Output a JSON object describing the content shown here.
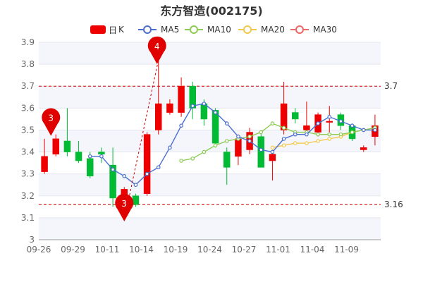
{
  "chart_data": {
    "type": "candlestick",
    "title": "东方智造(002175)",
    "legend": [
      "日",
      "K",
      "MA5",
      "MA10",
      "MA20",
      "MA30"
    ],
    "ylim": [
      3.0,
      3.9
    ],
    "yticks": [
      "3",
      "3.1",
      "3.2",
      "3.3",
      "3.4",
      "3.5",
      "3.6",
      "3.7",
      "3.8",
      "3.9"
    ],
    "xticks": [
      "09-26",
      "09-29",
      "10-11",
      "10-14",
      "10-19",
      "10-24",
      "10-27",
      "11-01",
      "11-04",
      "11-09"
    ],
    "colors": {
      "up": "#ee0000",
      "down": "#00bb33",
      "ma5": "#4a6fd0",
      "ma10": "#8ccc55",
      "ma20": "#f4c84c",
      "ma30": "#ee6666",
      "refline": "#cc0000"
    },
    "candles": [
      {
        "o": 3.31,
        "c": 3.38,
        "h": 3.46,
        "l": 3.3
      },
      {
        "o": 3.39,
        "c": 3.46,
        "h": 3.48,
        "l": 3.38
      },
      {
        "o": 3.45,
        "c": 3.4,
        "h": 3.6,
        "l": 3.38
      },
      {
        "o": 3.4,
        "c": 3.36,
        "h": 3.45,
        "l": 3.35
      },
      {
        "o": 3.37,
        "c": 3.29,
        "h": 3.4,
        "l": 3.28
      },
      {
        "o": 3.4,
        "c": 3.39,
        "h": 3.42,
        "l": 3.35
      },
      {
        "o": 3.34,
        "c": 3.19,
        "h": 3.42,
        "l": 3.15
      },
      {
        "o": 3.2,
        "c": 3.23,
        "h": 3.24,
        "l": 3.09
      },
      {
        "o": 3.2,
        "c": 3.16,
        "h": 3.21,
        "l": 3.15
      },
      {
        "o": 3.21,
        "c": 3.48,
        "h": 3.49,
        "l": 3.2
      },
      {
        "o": 3.5,
        "c": 3.62,
        "h": 3.82,
        "l": 3.48
      },
      {
        "o": 3.58,
        "c": 3.62,
        "h": 3.64,
        "l": 3.57
      },
      {
        "o": 3.58,
        "c": 3.7,
        "h": 3.74,
        "l": 3.56
      },
      {
        "o": 3.7,
        "c": 3.6,
        "h": 3.72,
        "l": 3.55
      },
      {
        "o": 3.62,
        "c": 3.55,
        "h": 3.64,
        "l": 3.52
      },
      {
        "o": 3.59,
        "c": 3.44,
        "h": 3.6,
        "l": 3.42
      },
      {
        "o": 3.4,
        "c": 3.33,
        "h": 3.42,
        "l": 3.25
      },
      {
        "o": 3.38,
        "c": 3.46,
        "h": 3.48,
        "l": 3.34
      },
      {
        "o": 3.41,
        "c": 3.49,
        "h": 3.51,
        "l": 3.39
      },
      {
        "o": 3.47,
        "c": 3.33,
        "h": 3.49,
        "l": 3.33
      },
      {
        "o": 3.36,
        "c": 3.39,
        "h": 3.4,
        "l": 3.27
      },
      {
        "o": 3.5,
        "c": 3.62,
        "h": 3.72,
        "l": 3.48
      },
      {
        "o": 3.58,
        "c": 3.55,
        "h": 3.6,
        "l": 3.53
      },
      {
        "o": 3.5,
        "c": 3.52,
        "h": 3.63,
        "l": 3.49
      },
      {
        "o": 3.49,
        "c": 3.57,
        "h": 3.58,
        "l": 3.47
      },
      {
        "o": 3.54,
        "c": 3.54,
        "h": 3.61,
        "l": 3.49
      },
      {
        "o": 3.57,
        "c": 3.52,
        "h": 3.58,
        "l": 3.5
      },
      {
        "o": 3.52,
        "c": 3.46,
        "h": 3.53,
        "l": 3.45
      },
      {
        "o": 3.41,
        "c": 3.42,
        "h": 3.43,
        "l": 3.4
      },
      {
        "o": 3.47,
        "c": 3.52,
        "h": 3.57,
        "l": 3.43
      }
    ],
    "ma5": [
      null,
      null,
      null,
      null,
      3.38,
      3.38,
      3.32,
      3.29,
      3.25,
      3.3,
      3.33,
      3.42,
      3.52,
      3.61,
      3.62,
      3.58,
      3.53,
      3.47,
      3.45,
      3.41,
      3.4,
      3.46,
      3.48,
      3.48,
      3.53,
      3.56,
      3.54,
      3.52,
      3.5,
      3.5
    ],
    "ma10": [
      null,
      null,
      null,
      null,
      null,
      null,
      null,
      null,
      null,
      null,
      null,
      null,
      3.36,
      3.37,
      3.4,
      3.43,
      3.45,
      3.46,
      3.47,
      3.49,
      3.53,
      3.51,
      3.49,
      3.49,
      3.48,
      3.48,
      3.48,
      3.49,
      3.5,
      3.51
    ],
    "ma20": [
      null,
      null,
      null,
      null,
      null,
      null,
      null,
      null,
      null,
      null,
      null,
      null,
      null,
      null,
      null,
      null,
      null,
      null,
      null,
      null,
      3.42,
      3.43,
      3.44,
      3.44,
      3.45,
      3.46,
      3.47,
      3.49,
      3.5,
      3.51
    ],
    "ma30": [],
    "reference_lines": [
      {
        "value": 3.7,
        "label": "3.7"
      },
      {
        "value": 3.16,
        "label": "3.16"
      }
    ],
    "markers": [
      {
        "index": 1,
        "label": "3"
      },
      {
        "index": 7,
        "label": "3"
      },
      {
        "index": 10,
        "label": "4"
      }
    ]
  }
}
